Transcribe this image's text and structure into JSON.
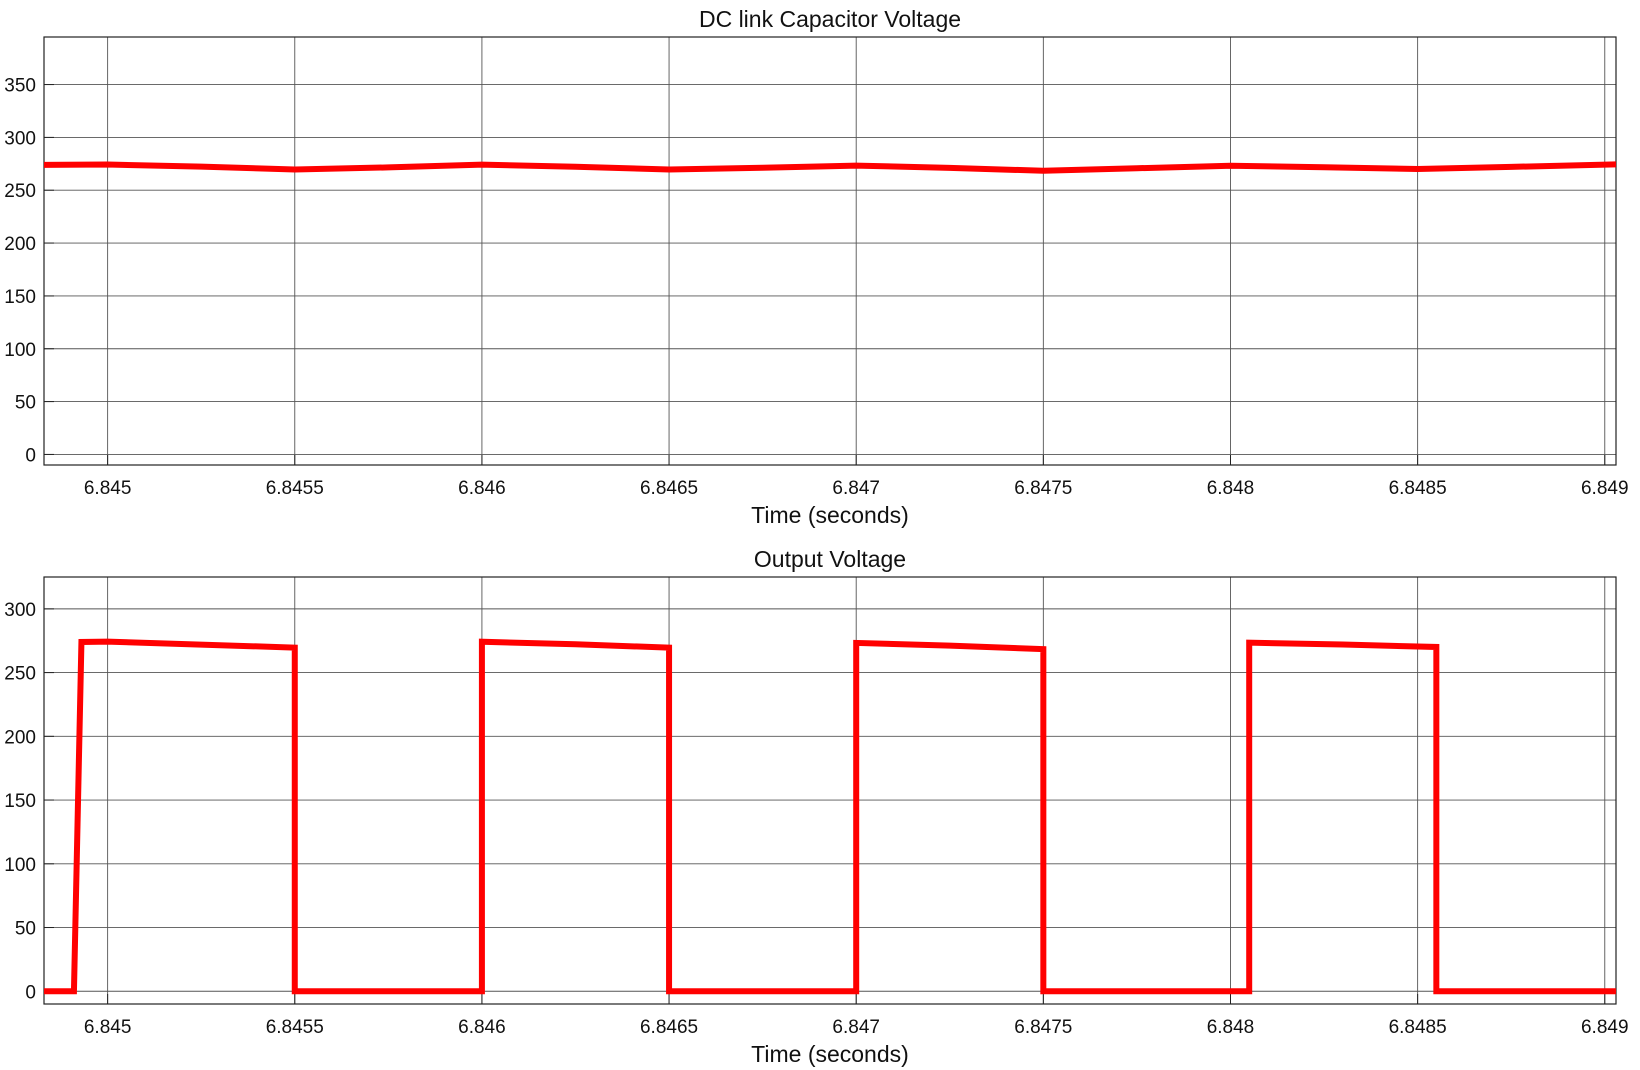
{
  "chart_data": [
    {
      "type": "line",
      "title": "DC link Capacitor Voltage",
      "xlabel": "Time (seconds)",
      "ylabel": "",
      "xlim": [
        6.84483,
        6.84903
      ],
      "ylim": [
        -10,
        395
      ],
      "xticks": [
        6.845,
        6.8455,
        6.846,
        6.8465,
        6.847,
        6.8475,
        6.848,
        6.8485,
        6.849
      ],
      "xtick_labels": [
        "6.845",
        "6.8455",
        "6.846",
        "6.8465",
        "6.847",
        "6.8475",
        "6.848",
        "6.8485",
        "6.849"
      ],
      "yticks": [
        0,
        50,
        100,
        150,
        200,
        250,
        300,
        350
      ],
      "ytick_labels": [
        "0",
        "50",
        "100",
        "150",
        "200",
        "250",
        "300",
        "350"
      ],
      "grid": true,
      "line_color": "#ff0000",
      "series": [
        {
          "x": [
            6.84483,
            6.845,
            6.84525,
            6.8455,
            6.84575,
            6.846,
            6.84625,
            6.8465,
            6.84675,
            6.847,
            6.84725,
            6.8475,
            6.84775,
            6.848,
            6.84825,
            6.8485,
            6.84875,
            6.84903
          ],
          "y": [
            274,
            274.3,
            272.3,
            269.6,
            271.6,
            274.2,
            272.2,
            269.6,
            271.3,
            273.3,
            271.2,
            268.4,
            270.8,
            273.2,
            271.7,
            270.1,
            272.1,
            274.5
          ]
        }
      ]
    },
    {
      "type": "line",
      "title": "Output Voltage",
      "xlabel": "Time (seconds)",
      "ylabel": "",
      "xlim": [
        6.84483,
        6.84903
      ],
      "ylim": [
        -10,
        325
      ],
      "xticks": [
        6.845,
        6.8455,
        6.846,
        6.8465,
        6.847,
        6.8475,
        6.848,
        6.8485,
        6.849
      ],
      "xtick_labels": [
        "6.845",
        "6.8455",
        "6.846",
        "6.8465",
        "6.847",
        "6.8475",
        "6.848",
        "6.8485",
        "6.849"
      ],
      "yticks": [
        0,
        50,
        100,
        150,
        200,
        250,
        300
      ],
      "ytick_labels": [
        "0",
        "50",
        "100",
        "150",
        "200",
        "250",
        "300"
      ],
      "grid": true,
      "line_color": "#ff0000",
      "series": [
        {
          "x": [
            6.84483,
            6.84488,
            6.84491,
            6.84493,
            6.845,
            6.8455,
            6.8455,
            6.846,
            6.846,
            6.84625,
            6.8465,
            6.8465,
            6.847,
            6.847,
            6.84725,
            6.8475,
            6.8475,
            6.84805,
            6.84805,
            6.8483,
            6.84855,
            6.84855,
            6.84903
          ],
          "y": [
            0,
            0,
            0,
            274,
            274.3,
            269.6,
            0,
            0,
            274.2,
            272.2,
            269.6,
            0,
            0,
            273.3,
            271.2,
            268.4,
            0,
            0,
            273.5,
            272,
            270.1,
            0,
            0
          ]
        }
      ]
    }
  ]
}
